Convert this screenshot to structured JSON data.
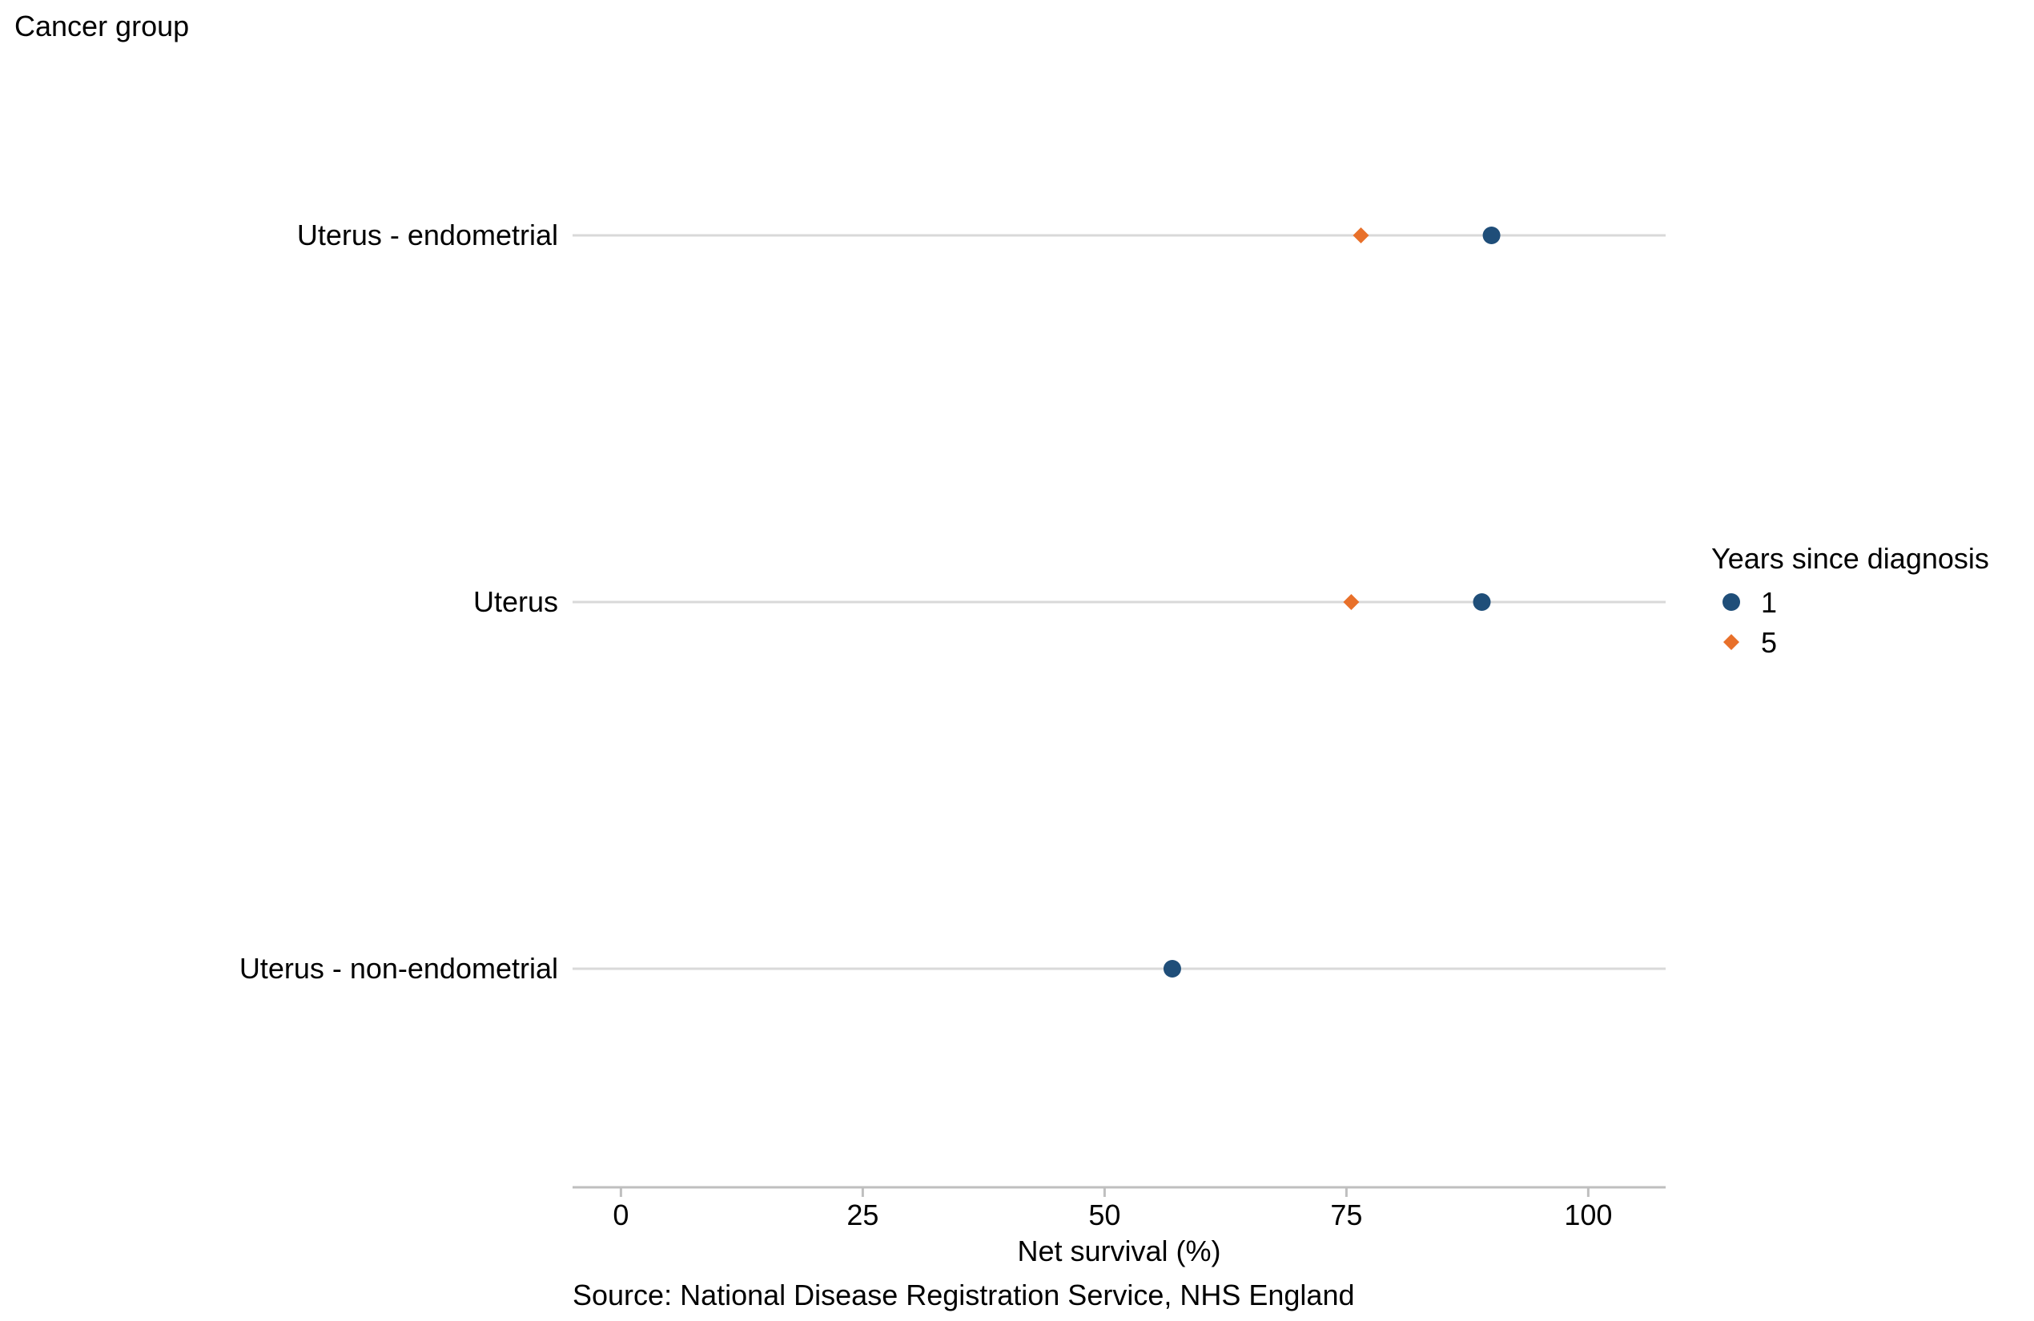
{
  "chart_data": {
    "type": "scatter",
    "y_axis_title": "Cancer group",
    "xlabel": "Net survival (%)",
    "source": "Source: National Disease Registration Service, NHS England",
    "xlim": [
      -5,
      108
    ],
    "x_ticks": [
      0,
      25,
      50,
      75,
      100
    ],
    "categories": [
      "Uterus - endometrial",
      "Uterus",
      "Uterus - non-endometrial"
    ],
    "legend": {
      "title": "Years since diagnosis",
      "placement": "right"
    },
    "series": [
      {
        "name": "1",
        "marker": "circle",
        "color": "#1f4e79",
        "values": [
          90.0,
          89.0,
          57.0
        ]
      },
      {
        "name": "5",
        "marker": "diamond",
        "color": "#e8702a",
        "values": [
          76.5,
          75.5,
          null
        ]
      }
    ],
    "grid": {
      "horizontal_category_lines": true,
      "vertical": false,
      "line_color": "#d9d9d9"
    }
  }
}
